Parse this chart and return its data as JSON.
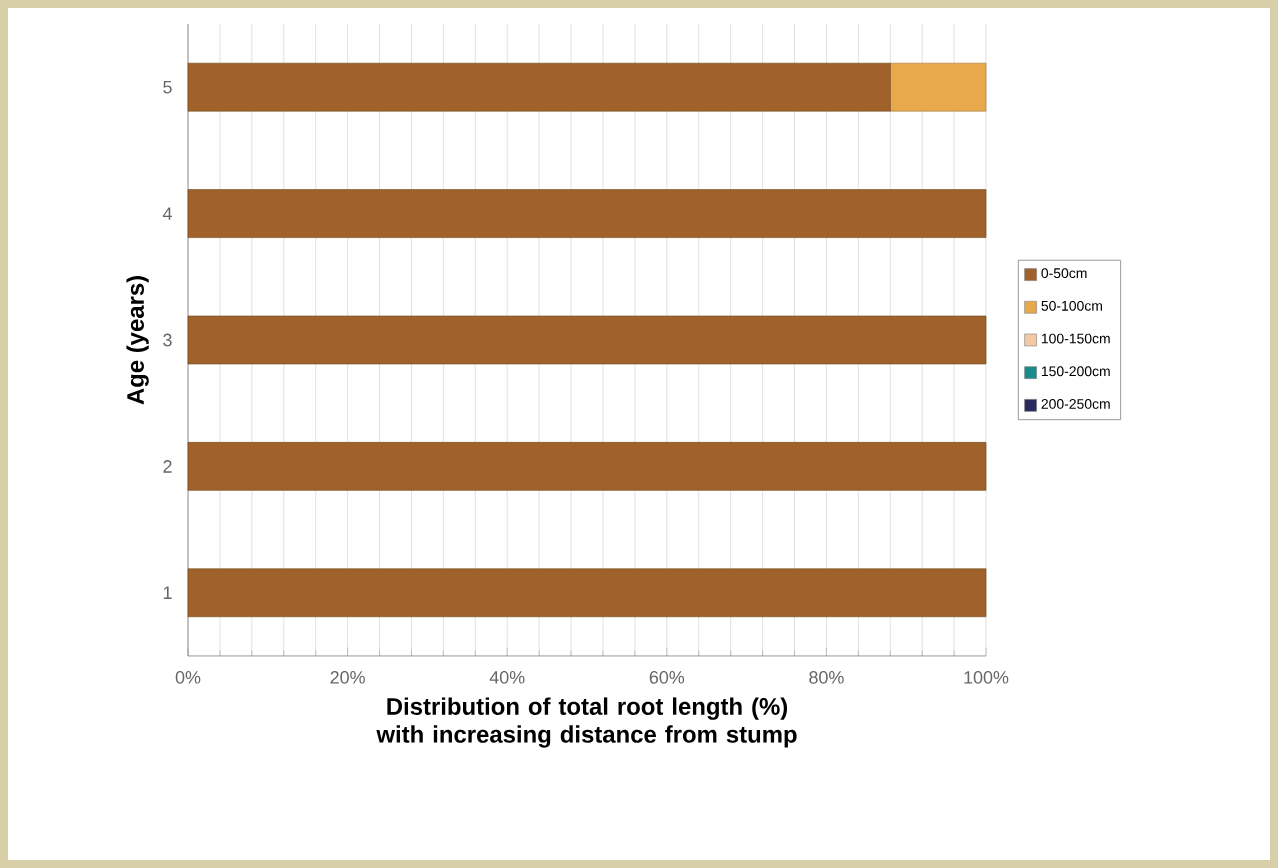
{
  "chart_data": {
    "type": "bar",
    "orientation": "horizontal",
    "stacked": true,
    "xlabel": "Distribution of total root length (%) with increasing distance from stump",
    "ylabel": "Age (years)",
    "categories": [
      "5",
      "4",
      "3",
      "2",
      "1"
    ],
    "series": [
      {
        "name": "0-50cm",
        "color": "#a0622a",
        "values": [
          88,
          100,
          100,
          100,
          100
        ]
      },
      {
        "name": "50-100cm",
        "color": "#e8a94c",
        "values": [
          12,
          0,
          0,
          0,
          0
        ]
      },
      {
        "name": "100-150cm",
        "color": "#f2c9a4",
        "values": [
          0,
          0,
          0,
          0,
          0
        ]
      },
      {
        "name": "150-200cm",
        "color": "#1a8a8a",
        "values": [
          0,
          0,
          0,
          0,
          0
        ]
      },
      {
        "name": "200-250cm",
        "color": "#2a2a60",
        "values": [
          0,
          0,
          0,
          0,
          0
        ]
      }
    ],
    "xlim": [
      0,
      100
    ],
    "xticks": [
      {
        "value": 0,
        "label": "0%"
      },
      {
        "value": 20,
        "label": "20%"
      },
      {
        "value": 40,
        "label": "40%"
      },
      {
        "value": 60,
        "label": "60%"
      },
      {
        "value": 80,
        "label": "80%"
      },
      {
        "value": 100,
        "label": "100%"
      }
    ],
    "grid": "x",
    "legend": "right"
  }
}
